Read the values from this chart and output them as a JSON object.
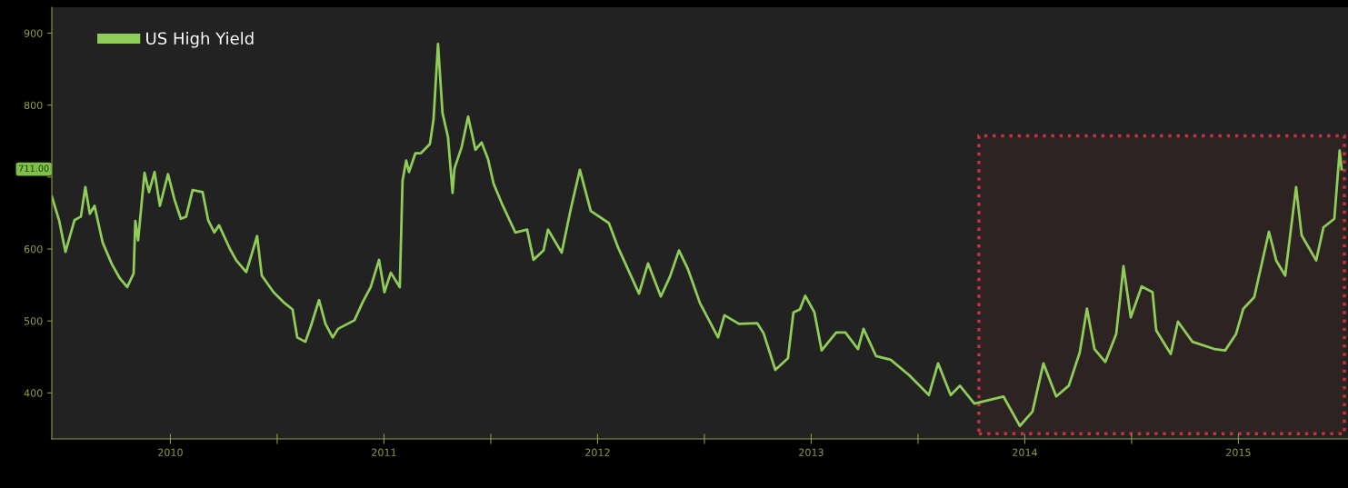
{
  "chart_data": {
    "type": "line",
    "x": [
      2009.945,
      2009.979,
      2010.009,
      2010.051,
      2010.081,
      2010.102,
      2010.123,
      2010.145,
      2010.183,
      2010.226,
      2010.264,
      2010.298,
      2010.328,
      2010.336,
      2010.349,
      2010.379,
      2010.4,
      2010.426,
      2010.451,
      2010.489,
      2010.519,
      2010.549,
      2010.574,
      2010.604,
      2010.651,
      2010.677,
      2010.706,
      2010.728,
      2010.779,
      2010.809,
      2010.855,
      2010.881,
      2010.906,
      2010.928,
      2010.983,
      2011.03,
      2011.072,
      2011.094,
      2011.132,
      2011.157,
      2011.196,
      2011.226,
      2011.26,
      2011.285,
      2011.362,
      2011.4,
      2011.438,
      2011.477,
      2011.502,
      2011.532,
      2011.574,
      2011.587,
      2011.604,
      2011.617,
      2011.647,
      2011.672,
      2011.715,
      2011.732,
      2011.753,
      2011.774,
      2011.8,
      2011.821,
      2011.83,
      2011.864,
      2011.894,
      2011.928,
      2011.957,
      2011.987,
      2012.013,
      2012.055,
      2012.115,
      2012.17,
      2012.2,
      2012.247,
      2012.268,
      2012.332,
      2012.374,
      2012.417,
      2012.468,
      2012.553,
      2012.596,
      2012.694,
      2012.736,
      2012.796,
      2012.838,
      2012.881,
      2012.923,
      2012.979,
      2013.064,
      2013.094,
      2013.162,
      2013.247,
      2013.277,
      2013.332,
      2013.391,
      2013.417,
      2013.447,
      2013.472,
      2013.515,
      2013.549,
      2013.617,
      2013.66,
      2013.719,
      2013.745,
      2013.804,
      2013.872,
      2013.957,
      2014.051,
      2014.094,
      2014.153,
      2014.196,
      2014.264,
      2014.4,
      2014.477,
      2014.536,
      2014.587,
      2014.647,
      2014.706,
      2014.757,
      2014.791,
      2014.826,
      2014.877,
      2014.928,
      2014.962,
      2014.996,
      2015.047,
      2015.098,
      2015.115,
      2015.183,
      2015.217,
      2015.285,
      2015.387,
      2015.438,
      2015.489,
      2015.523,
      2015.574,
      2015.643,
      2015.677,
      2015.719,
      2015.77,
      2015.796,
      2015.864,
      2015.898,
      2015.949,
      2015.974,
      2015.983
    ],
    "series": [
      {
        "name": "US High Yield",
        "color": "#8fcc58",
        "values": [
          673,
          640,
          596,
          640,
          645,
          686,
          649,
          660,
          609,
          579,
          559,
          547,
          566,
          639,
          612,
          706,
          679,
          707,
          660,
          704,
          669,
          642,
          645,
          682,
          679,
          640,
          623,
          633,
          600,
          584,
          568,
          593,
          618,
          563,
          540,
          526,
          516,
          477,
          471,
          492,
          529,
          496,
          477,
          489,
          501,
          526,
          547,
          585,
          540,
          567,
          547,
          695,
          723,
          707,
          733,
          733,
          746,
          780,
          885,
          789,
          755,
          678,
          712,
          742,
          784,
          738,
          748,
          725,
          691,
          661,
          623,
          627,
          585,
          598,
          627,
          595,
          655,
          710,
          653,
          636,
          602,
          538,
          580,
          534,
          561,
          598,
          572,
          525,
          477,
          508,
          496,
          497,
          483,
          432,
          448,
          512,
          516,
          535,
          512,
          459,
          484,
          484,
          461,
          489,
          451,
          446,
          425,
          397,
          441,
          397,
          410,
          385,
          395,
          354,
          374,
          441,
          395,
          410,
          456,
          517,
          461,
          443,
          482,
          576,
          505,
          548,
          540,
          487,
          454,
          499,
          471,
          461,
          459,
          482,
          517,
          533,
          624,
          584,
          563,
          686,
          619,
          584,
          630,
          642,
          737,
          711
        ]
      }
    ],
    "xlim": [
      2009.945,
      2016.013
    ],
    "xticks": [
      {
        "value": 2010.5,
        "label": "2010"
      },
      {
        "value": 2011,
        "label": null
      },
      {
        "value": 2011.5,
        "label": "2011"
      },
      {
        "value": 2012,
        "label": null
      },
      {
        "value": 2012.5,
        "label": "2012"
      },
      {
        "value": 2013,
        "label": null
      },
      {
        "value": 2013.5,
        "label": "2013"
      },
      {
        "value": 2014,
        "label": null
      },
      {
        "value": 2014.5,
        "label": "2014"
      },
      {
        "value": 2015,
        "label": null
      },
      {
        "value": 2015.5,
        "label": "2015"
      }
    ],
    "ylim": [
      336,
      936
    ],
    "yticks": [
      400,
      500,
      600,
      {
        "value": 700,
        "label": null
      },
      800,
      900
    ],
    "bands": [
      {
        "axis": "x",
        "from": 2014.285,
        "to": 2015.996,
        "color": "#c8323c"
      }
    ],
    "annotations": [
      "711.00"
    ],
    "legend": "top left",
    "grid": false,
    "marker": "none",
    "line_style": "solid"
  }
}
